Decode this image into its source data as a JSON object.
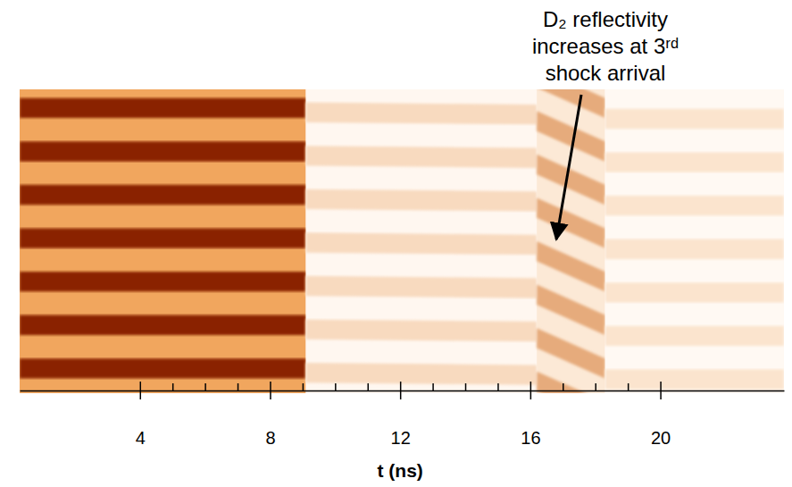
{
  "chart_data": {
    "type": "streak",
    "x": [
      0.3,
      9.1,
      16.2,
      18.3
    ],
    "values": [
      1,
      0.18,
      0.45,
      0.12
    ],
    "fringe_shift": [
      [
        0,
        0
      ],
      [
        0.1,
        0.15
      ],
      [
        0.3,
        1.0
      ],
      [
        0.25,
        0.25
      ]
    ],
    "fringe_count": 7,
    "xlim": [
      0.3,
      23.8
    ],
    "xticks": [
      4,
      8,
      12,
      16,
      20
    ],
    "xminor": [
      5,
      6,
      7,
      9,
      10,
      11,
      13,
      14,
      15,
      17,
      18,
      19
    ],
    "xlabel": "t (ns)",
    "tick_labels": "x",
    "annotation": {
      "lines": [
        "D₂ reflectivity",
        "increases at 3ʳᵈ",
        "shock arrival"
      ],
      "x": 16.8
    }
  }
}
